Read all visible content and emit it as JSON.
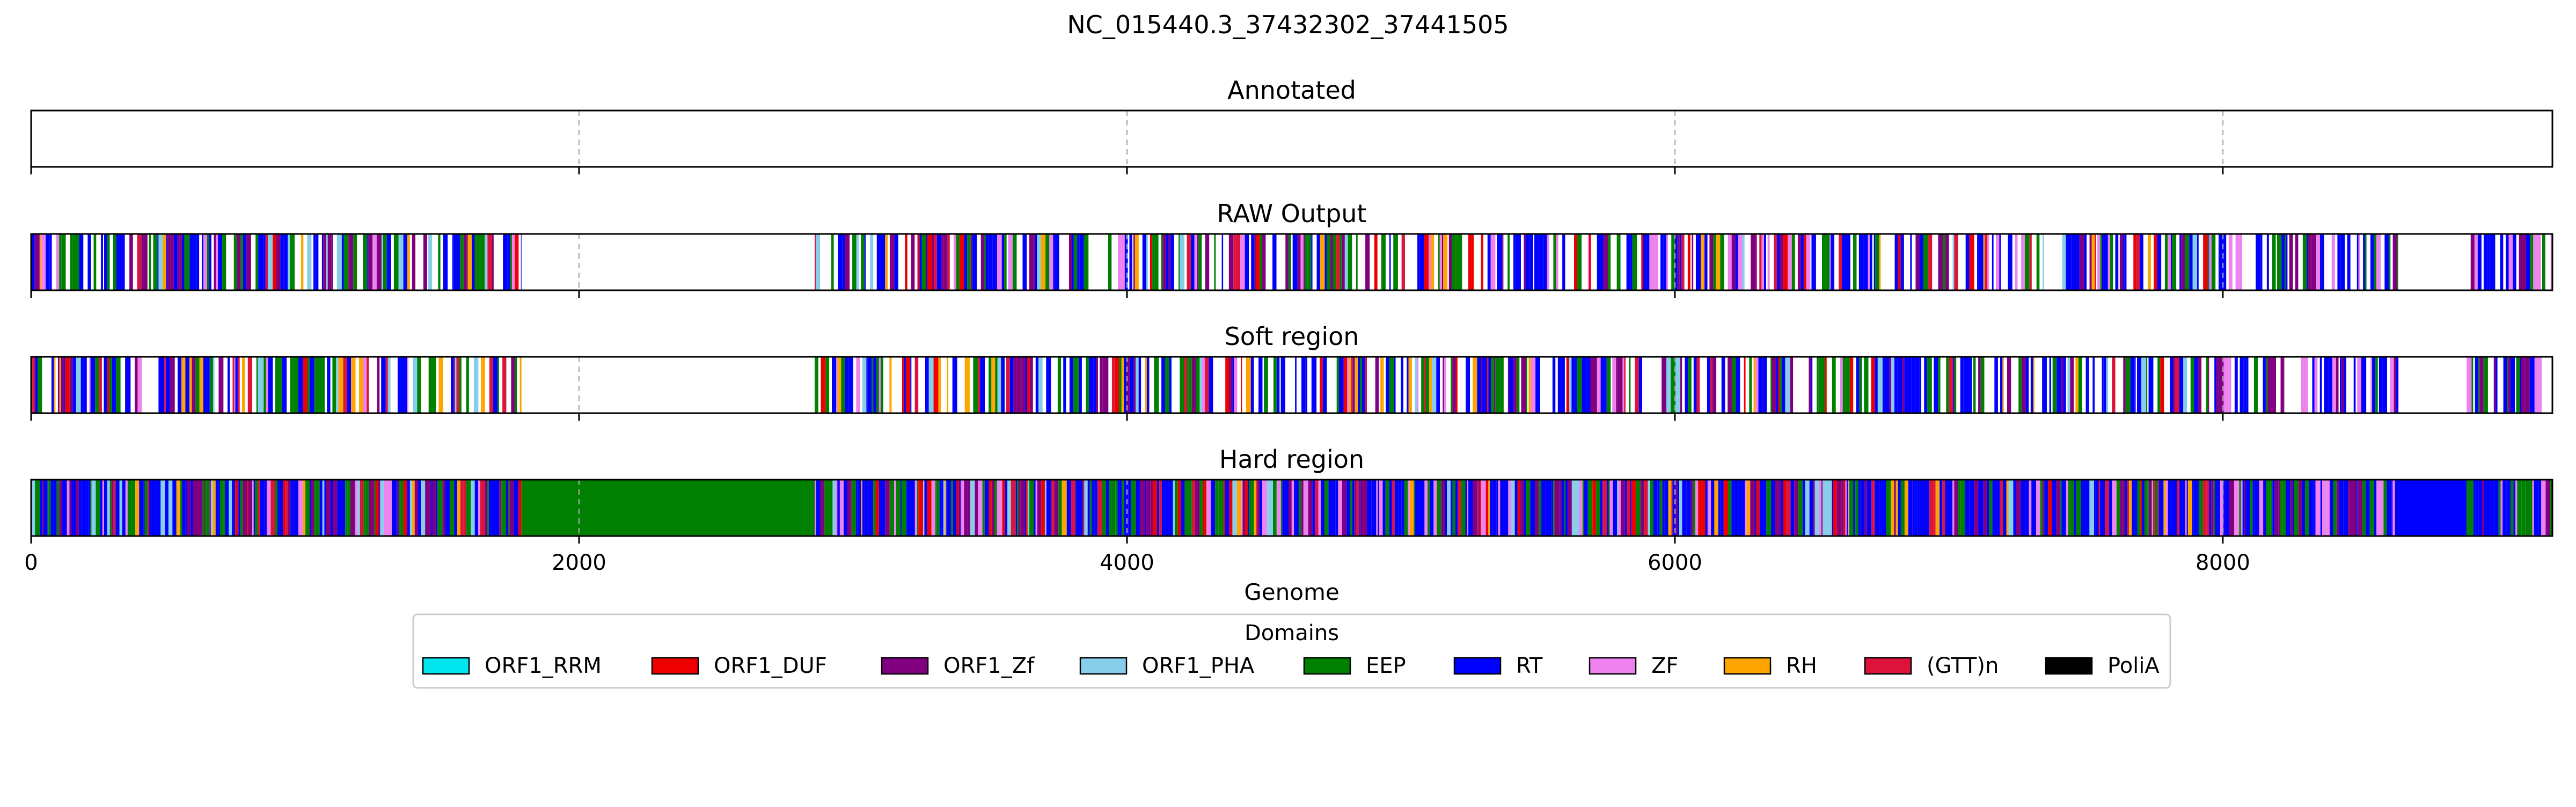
{
  "chart_data": {
    "type": "bar",
    "title": "NC_015440.3_37432302_37441505",
    "xlabel": "Genome",
    "xlim": [
      0,
      9203
    ],
    "xticks": [
      0,
      2000,
      4000,
      6000,
      8000
    ],
    "xtick_labels": [
      "0",
      "2000",
      "4000",
      "6000",
      "8000"
    ],
    "grid": "dashed vertical at x ticks",
    "tracks": [
      {
        "name": "Annotated",
        "empty": true,
        "blocks": []
      },
      {
        "name": "RAW Output",
        "style": "striped",
        "blocks": [
          {
            "start": 0,
            "end": 1790,
            "mix": [
              "RT",
              "EEP",
              "ORF1_Zf",
              "ZF",
              "ORF1_PHA",
              "RH",
              "ORF1_DUF",
              "(GTT)n"
            ]
          },
          {
            "start": 2860,
            "end": 7950,
            "mix": [
              "RT",
              "EEP",
              "ORF1_Zf",
              "ZF",
              "ORF1_PHA",
              "RH",
              "ORF1_DUF",
              "(GTT)n"
            ]
          },
          {
            "start": 7950,
            "end": 8640,
            "mix": [
              "RT",
              "ZF",
              "ORF1_Zf",
              "EEP"
            ]
          },
          {
            "start": 8890,
            "end": 9203,
            "mix": [
              "RT",
              "EEP",
              "ORF1_Zf",
              "ZF"
            ]
          }
        ]
      },
      {
        "name": "Soft region",
        "style": "striped",
        "blocks": [
          {
            "start": 0,
            "end": 1790,
            "mix": [
              "RT",
              "EEP",
              "ORF1_Zf",
              "ZF",
              "ORF1_PHA",
              "RH",
              "ORF1_DUF",
              "(GTT)n"
            ]
          },
          {
            "start": 2860,
            "end": 7950,
            "mix": [
              "RT",
              "EEP",
              "ORF1_Zf",
              "ZF",
              "ORF1_PHA",
              "RH",
              "ORF1_DUF",
              "(GTT)n"
            ]
          },
          {
            "start": 7950,
            "end": 8640,
            "mix": [
              "RT",
              "ZF",
              "ORF1_Zf",
              "EEP"
            ]
          },
          {
            "start": 8890,
            "end": 9203,
            "mix": [
              "RT",
              "EEP",
              "ORF1_Zf",
              "ZF"
            ]
          }
        ]
      },
      {
        "name": "Hard region",
        "style": "filled",
        "blocks": [
          {
            "start": 0,
            "end": 1790,
            "mix": [
              "RT",
              "EEP",
              "ORF1_Zf",
              "ZF",
              "ORF1_PHA",
              "RH",
              "ORF1_DUF",
              "(GTT)n"
            ]
          },
          {
            "start": 1790,
            "end": 2860,
            "solid": "EEP"
          },
          {
            "start": 2860,
            "end": 7950,
            "mix": [
              "RT",
              "EEP",
              "ORF1_Zf",
              "ZF",
              "ORF1_PHA",
              "RH",
              "ORF1_DUF",
              "(GTT)n"
            ]
          },
          {
            "start": 7950,
            "end": 8640,
            "mix": [
              "RT",
              "ZF",
              "ORF1_Zf",
              "EEP"
            ]
          },
          {
            "start": 8640,
            "end": 8890,
            "solid": "RT"
          },
          {
            "start": 8890,
            "end": 9203,
            "mix": [
              "RT",
              "EEP",
              "ORF1_Zf",
              "ZF"
            ]
          }
        ]
      }
    ],
    "legend": {
      "title": "Domains",
      "placement": "bottom-center",
      "entries": [
        {
          "label": "ORF1_RRM",
          "color": "#00e5ee"
        },
        {
          "label": "ORF1_DUF",
          "color": "#ee0000"
        },
        {
          "label": "ORF1_Zf",
          "color": "#800080"
        },
        {
          "label": "ORF1_PHA",
          "color": "#87ceeb"
        },
        {
          "label": "EEP",
          "color": "#008000"
        },
        {
          "label": "RT",
          "color": "#0000ff"
        },
        {
          "label": "ZF",
          "color": "#ee82ee"
        },
        {
          "label": "RH",
          "color": "#ffa500"
        },
        {
          "label": "(GTT)n",
          "color": "#dc143c"
        },
        {
          "label": "PoliA",
          "color": "#000000"
        }
      ]
    }
  }
}
